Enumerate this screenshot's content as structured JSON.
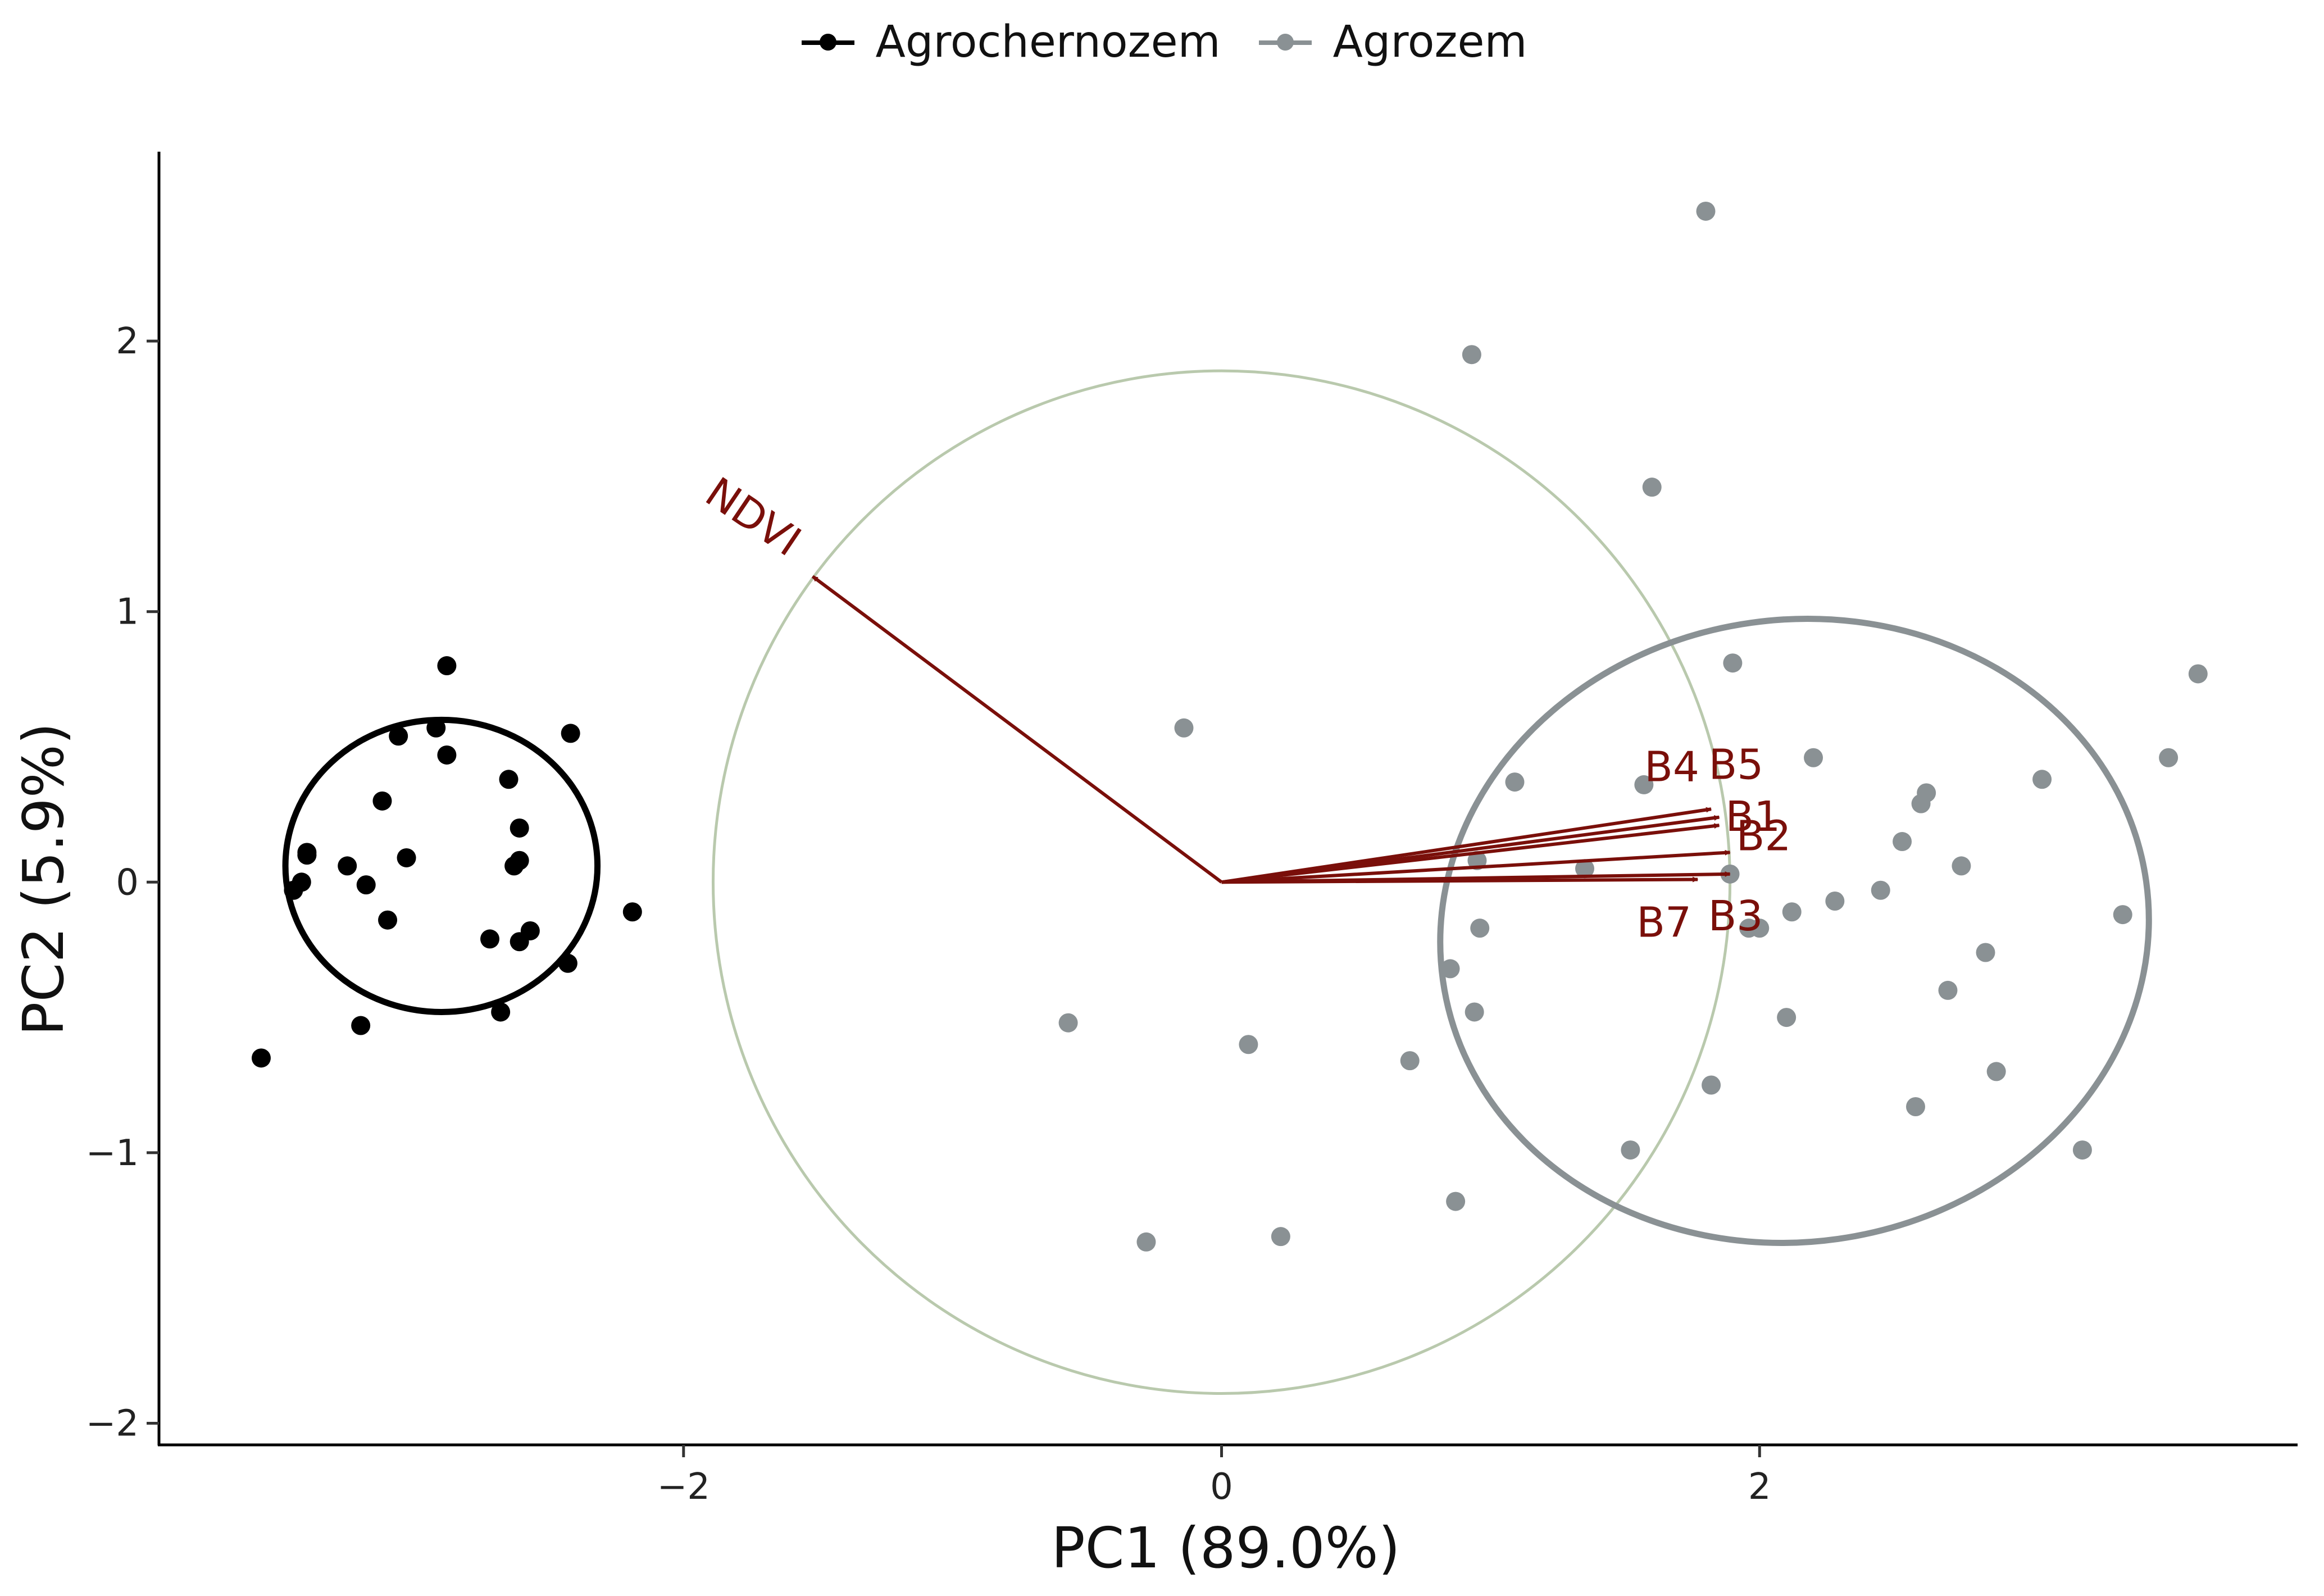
{
  "chart_data": {
    "type": "scatter",
    "subtype": "pca-biplot",
    "xlabel": "PC1 (89.0%)",
    "ylabel": "PC2 (5.9%)",
    "xlim": [
      -3.95,
      4.0
    ],
    "ylim": [
      -2.08,
      2.7
    ],
    "x_ticks": [
      {
        "value": -2,
        "label": "−2"
      },
      {
        "value": 0,
        "label": "0"
      },
      {
        "value": 2,
        "label": "2"
      }
    ],
    "y_ticks": [
      {
        "value": -2,
        "label": "−2"
      },
      {
        "value": -1,
        "label": "−1"
      },
      {
        "value": 0,
        "label": "0"
      },
      {
        "value": 1,
        "label": "1"
      },
      {
        "value": 2,
        "label": "2"
      }
    ],
    "legend_position": "top",
    "series": [
      {
        "name": "Agrochernozem",
        "color": "#000000",
        "ellipse": {
          "cx": -2.9,
          "cy": 0.06,
          "rx": 0.58,
          "ry": 0.54,
          "angle_deg": 0
        },
        "points": [
          [
            -3.57,
            -0.65
          ],
          [
            -3.45,
            -0.03
          ],
          [
            -3.42,
            0.0
          ],
          [
            -3.4,
            0.1
          ],
          [
            -3.4,
            0.11
          ],
          [
            -3.25,
            0.06
          ],
          [
            -3.2,
            -0.53
          ],
          [
            -3.18,
            -0.01
          ],
          [
            -3.12,
            0.3
          ],
          [
            -3.1,
            -0.14
          ],
          [
            -3.06,
            0.54
          ],
          [
            -3.03,
            0.09
          ],
          [
            -2.92,
            0.57
          ],
          [
            -2.88,
            0.8
          ],
          [
            -2.88,
            0.47
          ],
          [
            -2.72,
            -0.21
          ],
          [
            -2.68,
            -0.48
          ],
          [
            -2.65,
            0.38
          ],
          [
            -2.63,
            0.06
          ],
          [
            -2.61,
            0.08
          ],
          [
            -2.61,
            0.2
          ],
          [
            -2.61,
            -0.22
          ],
          [
            -2.57,
            -0.18
          ],
          [
            -2.43,
            -0.3
          ],
          [
            -2.42,
            0.55
          ],
          [
            -2.19,
            -0.11
          ]
        ]
      },
      {
        "name": "Agrozem",
        "color": "#8a9194",
        "ellipse": {
          "cx": 2.13,
          "cy": -0.18,
          "rx": 1.32,
          "ry": 1.15,
          "angle_deg": -8
        },
        "points": [
          [
            1.8,
            2.48
          ],
          [
            0.93,
            1.95
          ],
          [
            1.6,
            1.46
          ],
          [
            1.9,
            0.81
          ],
          [
            3.63,
            0.77
          ],
          [
            -0.14,
            0.57
          ],
          [
            2.2,
            0.46
          ],
          [
            3.52,
            0.46
          ],
          [
            1.09,
            0.37
          ],
          [
            3.05,
            0.38
          ],
          [
            1.57,
            0.36
          ],
          [
            2.62,
            0.33
          ],
          [
            2.6,
            0.29
          ],
          [
            2.53,
            0.15
          ],
          [
            0.95,
            0.08
          ],
          [
            1.35,
            0.05
          ],
          [
            2.75,
            0.06
          ],
          [
            1.89,
            0.03
          ],
          [
            2.28,
            -0.07
          ],
          [
            2.45,
            -0.03
          ],
          [
            2.12,
            -0.11
          ],
          [
            3.35,
            -0.12
          ],
          [
            1.96,
            -0.17
          ],
          [
            2.0,
            -0.17
          ],
          [
            0.96,
            -0.17
          ],
          [
            2.84,
            -0.26
          ],
          [
            0.85,
            -0.32
          ],
          [
            2.7,
            -0.4
          ],
          [
            -0.57,
            -0.52
          ],
          [
            2.1,
            -0.5
          ],
          [
            0.94,
            -0.48
          ],
          [
            0.1,
            -0.6
          ],
          [
            0.7,
            -0.66
          ],
          [
            2.88,
            -0.7
          ],
          [
            1.82,
            -0.75
          ],
          [
            2.58,
            -0.83
          ],
          [
            1.52,
            -0.99
          ],
          [
            3.2,
            -0.99
          ],
          [
            0.87,
            -1.18
          ],
          [
            0.22,
            -1.31
          ],
          [
            -0.28,
            -1.33
          ]
        ]
      }
    ],
    "correlation_circle": {
      "cx": 0,
      "cy": 0,
      "r": 1.89,
      "color": "#b9c9ad"
    },
    "loadings": [
      {
        "name": "NDVI",
        "x": -1.52,
        "y": 1.13
      },
      {
        "name": "B4",
        "x": 1.82,
        "y": 0.27
      },
      {
        "name": "B5",
        "x": 1.85,
        "y": 0.24
      },
      {
        "name": "B1",
        "x": 1.85,
        "y": 0.21
      },
      {
        "name": "B2",
        "x": 1.89,
        "y": 0.11
      },
      {
        "name": "B3",
        "x": 1.89,
        "y": 0.03
      },
      {
        "name": "B7",
        "x": 1.77,
        "y": 0.01
      }
    ],
    "loading_color": "#7a0f0a"
  },
  "legend": {
    "items": [
      {
        "label": "Agrochernozem",
        "color": "#000000"
      },
      {
        "label": "Agrozem",
        "color": "#8a9194"
      }
    ]
  }
}
